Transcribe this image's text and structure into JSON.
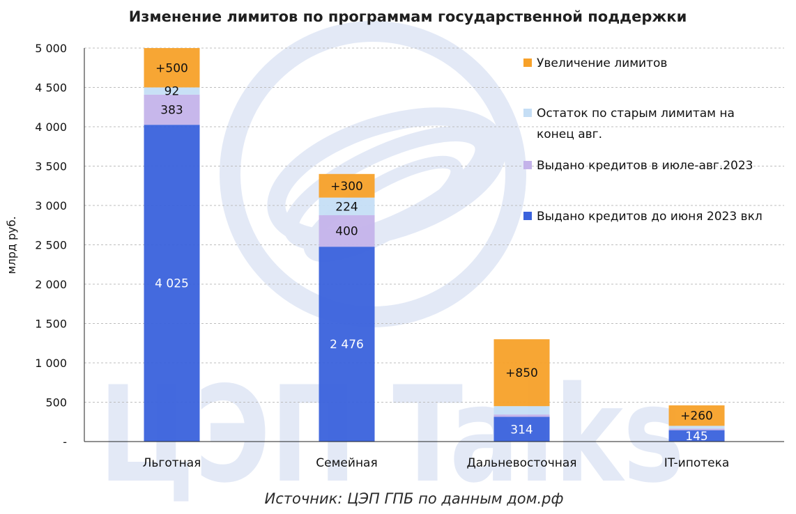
{
  "chart_data": {
    "type": "bar",
    "stacked": true,
    "title": "Изменение лимитов по программам государственной поддержки",
    "ylabel": "млрд руб.",
    "xlabel": "",
    "ylim": [
      0,
      5000
    ],
    "yticks": [
      0,
      500,
      1000,
      1500,
      2000,
      2500,
      3000,
      3500,
      4000,
      4500,
      5000
    ],
    "ytick_labels": [
      "-",
      "500",
      "1 000",
      "1 500",
      "2 000",
      "2 500",
      "3 000",
      "3 500",
      "4 000",
      "4 500",
      "5 000"
    ],
    "grid": true,
    "legend_position": "top-right",
    "categories": [
      "Льготная",
      "Семейная",
      "Дальневосточная",
      "IT-ипотека"
    ],
    "series": [
      {
        "name": "Выдано кредитов до июня 2023 вкл",
        "color": "#3a62dc",
        "values": [
          4025,
          2476,
          314,
          145
        ],
        "labels": [
          "4 025",
          "2 476",
          "314",
          "145"
        ],
        "label_color": "#ffffff"
      },
      {
        "name": "Выдано кредитов в июле-авг.2023",
        "color": "#c4b3ea",
        "values": [
          383,
          400,
          30,
          20
        ],
        "labels": [
          "383",
          "400",
          "",
          ""
        ],
        "label_color": "#111111"
      },
      {
        "name": "Остаток по старым лимитам на конец авг.",
        "color": "#c5def5",
        "values": [
          92,
          224,
          106,
          35
        ],
        "labels": [
          "92",
          "224",
          "",
          ""
        ],
        "label_color": "#111111"
      },
      {
        "name": "Увеличение лимитов",
        "color": "#f7a129",
        "values": [
          500,
          300,
          850,
          260
        ],
        "labels": [
          "+500",
          "+300",
          "+850",
          "+260"
        ],
        "label_color": "#111111"
      }
    ],
    "legend_order": [
      3,
      2,
      1,
      0
    ],
    "source": "Источник: ЦЭП ГПБ по данным дом.рф",
    "watermark": "ЦЭП Talks"
  }
}
